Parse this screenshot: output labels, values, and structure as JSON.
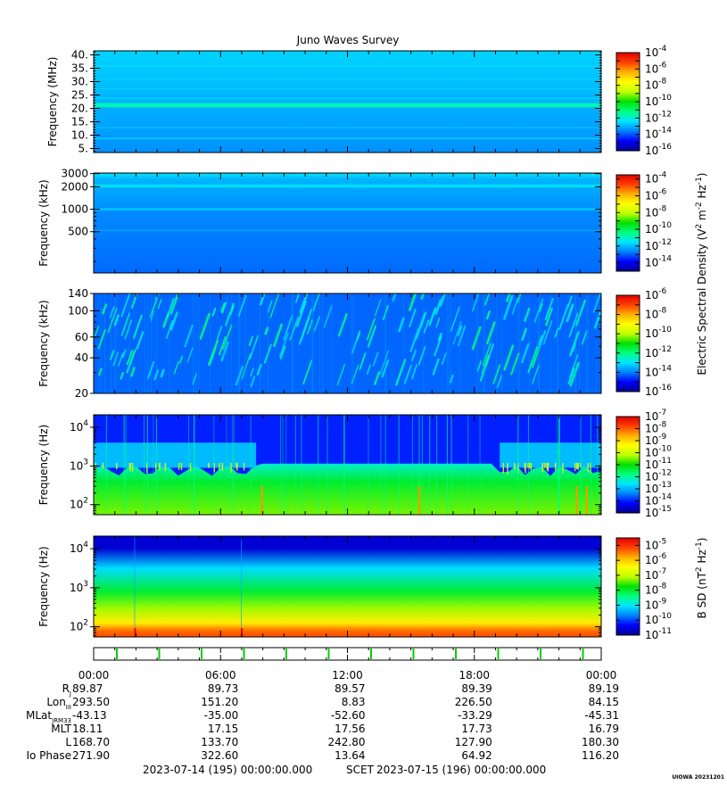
{
  "title": "Juno Waves Survey",
  "footer": {
    "start": "2023-07-14 (195) 00:00:00.000",
    "middle": "SCET",
    "end": "2023-07-15 (196) 00:00:00.000",
    "credit": "UIOWA 20231201"
  },
  "colorbar_labels": {
    "electric": "Electric Spectral Density (V",
    "electric_sup2": "2",
    "electric_m": " m",
    "electric_supm2": "-2",
    "electric_hz": " Hz",
    "electric_supm1": "-1",
    "electric_close": ")",
    "magnetic": "B SD (nT",
    "magnetic_sup2": "2",
    "magnetic_hz": " Hz",
    "magnetic_supm1": "-1",
    "magnetic_close": ")"
  },
  "colors": {
    "cmap": [
      "#00008b",
      "#0000ff",
      "#0080ff",
      "#00e5ff",
      "#00ff80",
      "#00e000",
      "#c0ff00",
      "#ffff00",
      "#ffb000",
      "#ff4000",
      "#e00000"
    ]
  },
  "chart_data": [
    {
      "type": "heatmap",
      "ylabel": "Frequency (MHz)",
      "yscale": "linear",
      "ylim": [
        3.5,
        41.5
      ],
      "yticks": [
        {
          "v": 5,
          "t": "5."
        },
        {
          "v": 10,
          "t": "10."
        },
        {
          "v": 15,
          "t": "15."
        },
        {
          "v": 20,
          "t": "20."
        },
        {
          "v": 25,
          "t": "25."
        },
        {
          "v": 30,
          "t": "30."
        },
        {
          "v": 35,
          "t": "35."
        },
        {
          "v": 40,
          "t": "40."
        }
      ],
      "colorbar": {
        "min_exp": -16,
        "max_exp": -4,
        "labels": [
          -16,
          -14,
          -12,
          -10,
          -8,
          -6,
          -4
        ]
      },
      "background_exp": -13
    },
    {
      "type": "heatmap",
      "ylabel": "Frequency (kHz)",
      "yscale": "log",
      "ylim": [
        140,
        3050
      ],
      "yticks": [
        {
          "v": 500,
          "t": "500"
        },
        {
          "v": 1000,
          "t": "1000"
        },
        {
          "v": 2000,
          "t": "2000"
        },
        {
          "v": 3000,
          "t": "3000"
        }
      ],
      "colorbar": {
        "min_exp": -15,
        "max_exp": -3.5,
        "labels": [
          -14,
          -12,
          -10,
          -8,
          -6,
          -4
        ]
      },
      "background_exp": -12.5
    },
    {
      "type": "heatmap",
      "ylabel": "Frequency (kHz)",
      "yscale": "log",
      "ylim": [
        20,
        140
      ],
      "yticks": [
        {
          "v": 20,
          "t": "20"
        },
        {
          "v": 40,
          "t": "40"
        },
        {
          "v": 60,
          "t": "60"
        },
        {
          "v": 100,
          "t": "100"
        },
        {
          "v": 140,
          "t": "140"
        }
      ],
      "colorbar": {
        "min_exp": -16,
        "max_exp": -6,
        "labels": [
          -16,
          -14,
          -12,
          -10,
          -8,
          -6
        ]
      },
      "background_exp": -14
    },
    {
      "type": "heatmap",
      "ylabel": "Frequency (Hz)",
      "yscale": "log",
      "ylim": [
        55,
        21000
      ],
      "yticks": [
        {
          "v": 100,
          "t": "10",
          "e": "2"
        },
        {
          "v": 1000,
          "t": "10",
          "e": "3"
        },
        {
          "v": 10000,
          "t": "10",
          "e": "4"
        }
      ],
      "colorbar": {
        "min_exp": -15,
        "max_exp": -7,
        "labels": [
          -15,
          -14,
          -13,
          -12,
          -11,
          -10,
          -9,
          -8,
          -7
        ]
      },
      "background_exp": -11
    },
    {
      "type": "heatmap",
      "ylabel": "Frequency (Hz)",
      "yscale": "log",
      "ylim": [
        55,
        21000
      ],
      "yticks": [
        {
          "v": 100,
          "t": "10",
          "e": "2"
        },
        {
          "v": 1000,
          "t": "10",
          "e": "3"
        },
        {
          "v": 10000,
          "t": "10",
          "e": "4"
        }
      ],
      "colorbar": {
        "min_exp": -11,
        "max_exp": -4.5,
        "labels": [
          -11,
          -10,
          -9,
          -8,
          -7,
          -6,
          -5
        ]
      },
      "background_exp": -8
    }
  ],
  "ephemeris": {
    "times": [
      "00:00",
      "06:00",
      "12:00",
      "18:00",
      "00:00"
    ],
    "rows": [
      {
        "label": "R",
        "sub": "J",
        "values": [
          "89.87",
          "89.73",
          "89.57",
          "89.39",
          "89.19"
        ]
      },
      {
        "label": "Lon",
        "sub": "III",
        "values": [
          "293.50",
          "151.20",
          "8.83",
          "226.50",
          "84.15"
        ]
      },
      {
        "label": "MLat",
        "sub": "JRM33",
        "values": [
          "-43.13",
          "-35.00",
          "-52.60",
          "-33.29",
          "-45.31"
        ]
      },
      {
        "label": "MLT",
        "sub": "",
        "values": [
          "18.11",
          "17.15",
          "17.56",
          "17.73",
          "16.79"
        ]
      },
      {
        "label": "L",
        "sub": "",
        "values": [
          "168.70",
          "133.70",
          "242.80",
          "127.90",
          "180.30"
        ]
      },
      {
        "label": "Io Phase",
        "sub": "",
        "values": [
          "271.90",
          "322.60",
          "13.64",
          "64.92",
          "116.20"
        ]
      }
    ]
  }
}
